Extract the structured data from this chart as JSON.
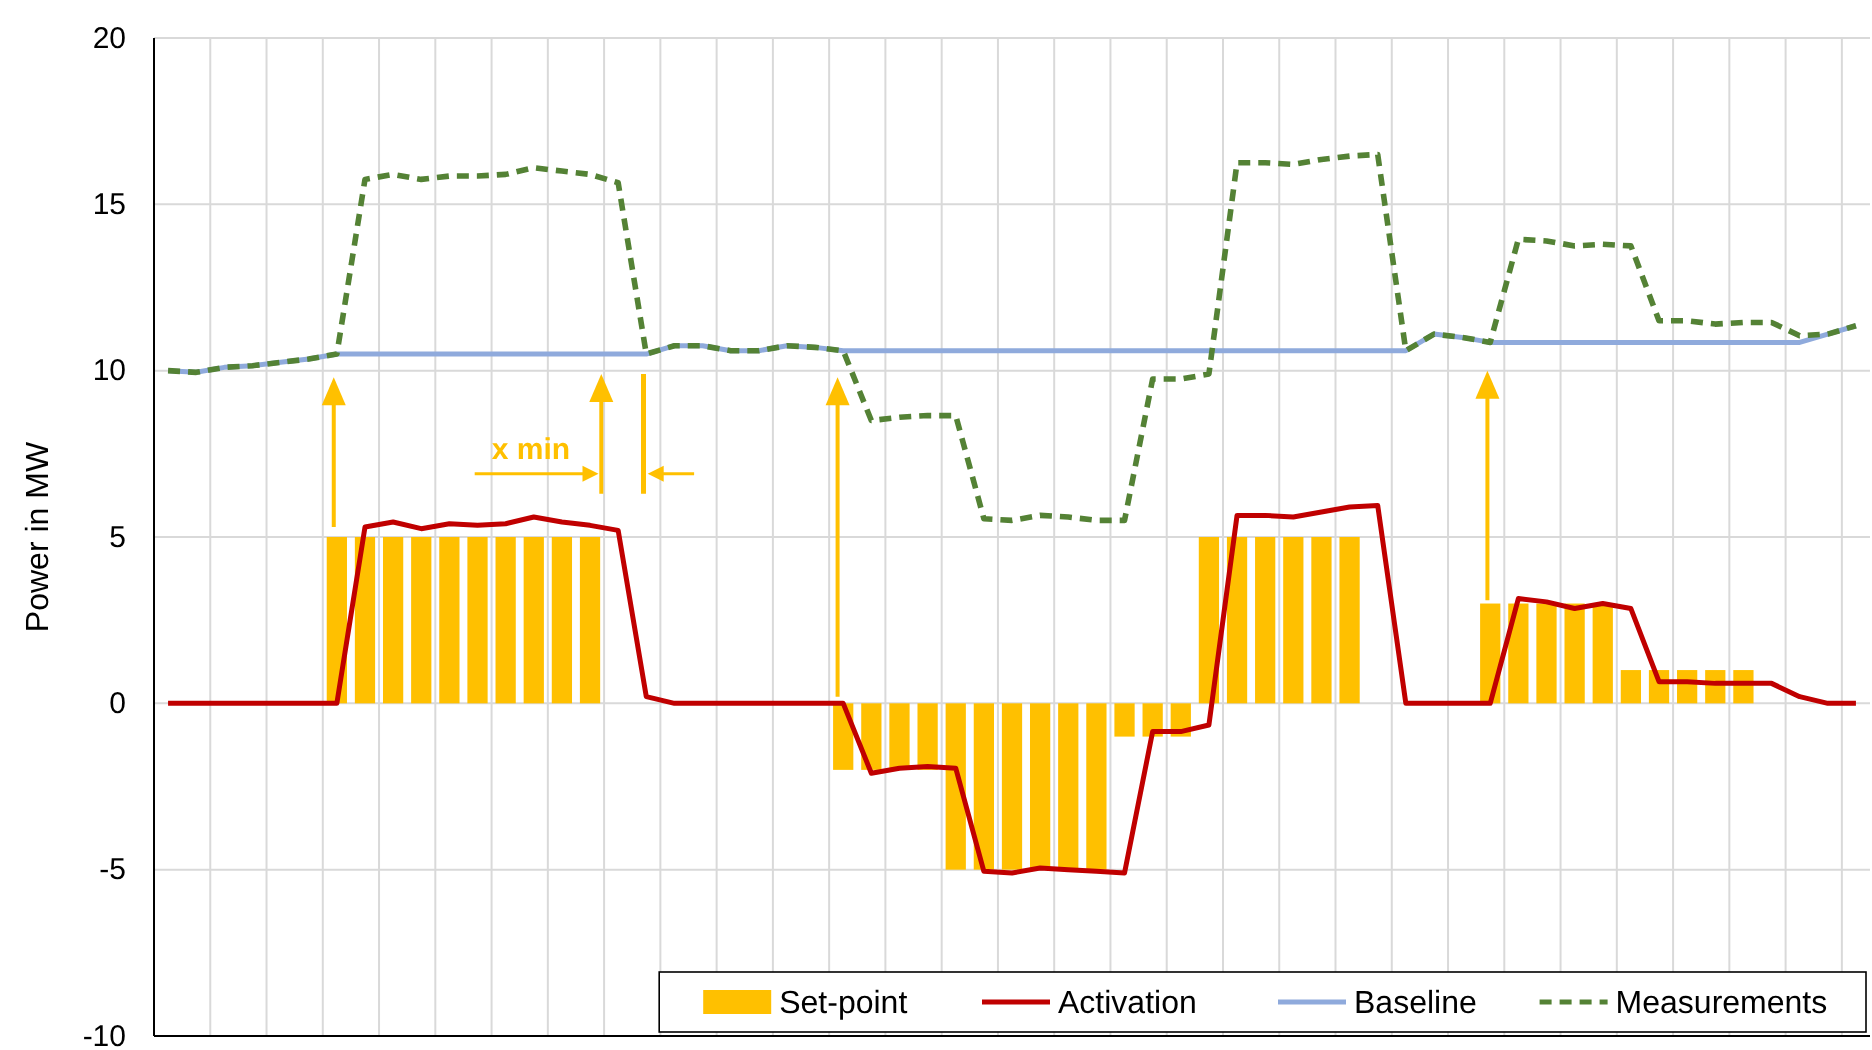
{
  "chart_data": {
    "type": "bar",
    "ylabel": "Power in MW",
    "categories": [
      null,
      null,
      null,
      null,
      null,
      null,
      null,
      null,
      null,
      null,
      null,
      null,
      null,
      null,
      null,
      null,
      null,
      null,
      null,
      null,
      null,
      null,
      null,
      null,
      null,
      null,
      null,
      null,
      null,
      null,
      null,
      null,
      null,
      null,
      null,
      null,
      null,
      null,
      null,
      null,
      null,
      null,
      null,
      null,
      null,
      null,
      null,
      null,
      null,
      null,
      null,
      null,
      null,
      null,
      null,
      null,
      null,
      null,
      null,
      null,
      null
    ],
    "series": [
      {
        "name": "Set-point",
        "color": "#ffc000",
        "values": [
          0,
          0,
          0,
          0,
          0,
          0,
          5,
          5,
          5,
          5,
          5,
          5,
          5,
          5,
          5,
          5,
          0,
          0,
          0,
          0,
          0,
          0,
          0,
          0,
          -2,
          -2,
          -2,
          -2,
          -5,
          -5,
          -5,
          -5,
          -5,
          -5,
          -1,
          -1,
          -1,
          5,
          5,
          5,
          5,
          5,
          5,
          0,
          0,
          0,
          0,
          3,
          3,
          3,
          3,
          3,
          1,
          1,
          1,
          1,
          1,
          0,
          0,
          0,
          0
        ]
      },
      {
        "name": "Activation",
        "type": "line",
        "color": "#c00000",
        "values": [
          0,
          0,
          0,
          0,
          0,
          0,
          0,
          5.3,
          5.45,
          5.25,
          5.4,
          5.35,
          5.4,
          5.6,
          5.45,
          5.35,
          5.2,
          0.2,
          0,
          0,
          0,
          0,
          0,
          0,
          0,
          -2.1,
          -1.95,
          -1.9,
          -1.95,
          -5.05,
          -5.1,
          -4.95,
          -5.0,
          -5.05,
          -5.1,
          -0.85,
          -0.85,
          -0.65,
          5.65,
          5.65,
          5.6,
          5.75,
          5.9,
          5.95,
          0,
          0,
          0,
          0,
          3.15,
          3.05,
          2.85,
          3.0,
          2.85,
          0.65,
          0.65,
          0.6,
          0.6,
          0.6,
          0.2,
          0,
          0
        ]
      },
      {
        "name": "Baseline",
        "type": "line",
        "color": "#8faadc",
        "values": [
          10,
          9.95,
          10.1,
          10.15,
          10.25,
          10.35,
          10.5,
          10.5,
          10.5,
          10.5,
          10.5,
          10.5,
          10.5,
          10.5,
          10.5,
          10.5,
          10.5,
          10.5,
          10.75,
          10.75,
          10.6,
          10.6,
          10.75,
          10.7,
          10.6,
          10.6,
          10.6,
          10.6,
          10.6,
          10.6,
          10.6,
          10.6,
          10.6,
          10.6,
          10.6,
          10.6,
          10.6,
          10.6,
          10.6,
          10.6,
          10.6,
          10.6,
          10.6,
          10.6,
          10.6,
          11.1,
          11.0,
          10.85,
          10.85,
          10.85,
          10.85,
          10.85,
          10.85,
          10.85,
          10.85,
          10.85,
          10.85,
          10.85,
          10.85,
          11.1,
          11.35
        ]
      },
      {
        "name": "Measurements",
        "type": "line",
        "color": "#548235",
        "line_style": "dashed",
        "values": [
          10,
          9.95,
          10.1,
          10.15,
          10.25,
          10.35,
          10.5,
          15.75,
          15.9,
          15.75,
          15.85,
          15.85,
          15.9,
          16.1,
          16.0,
          15.9,
          15.65,
          10.5,
          10.75,
          10.75,
          10.6,
          10.6,
          10.75,
          10.7,
          10.6,
          8.5,
          8.6,
          8.65,
          8.65,
          5.55,
          5.5,
          5.65,
          5.6,
          5.5,
          5.5,
          9.75,
          9.75,
          9.9,
          16.25,
          16.25,
          16.2,
          16.35,
          16.45,
          16.5,
          10.6,
          11.1,
          11.0,
          10.85,
          13.95,
          13.9,
          13.75,
          13.8,
          13.75,
          11.5,
          11.5,
          11.4,
          11.45,
          11.45,
          11.05,
          11.1,
          11.35
        ]
      }
    ],
    "ylim": [
      -10,
      20
    ],
    "yticks": [
      -10,
      -5,
      0,
      5,
      10,
      15,
      20
    ],
    "grid": true,
    "legend": "bottom right",
    "tick_labels": "y",
    "annotations": [
      "x min"
    ]
  }
}
